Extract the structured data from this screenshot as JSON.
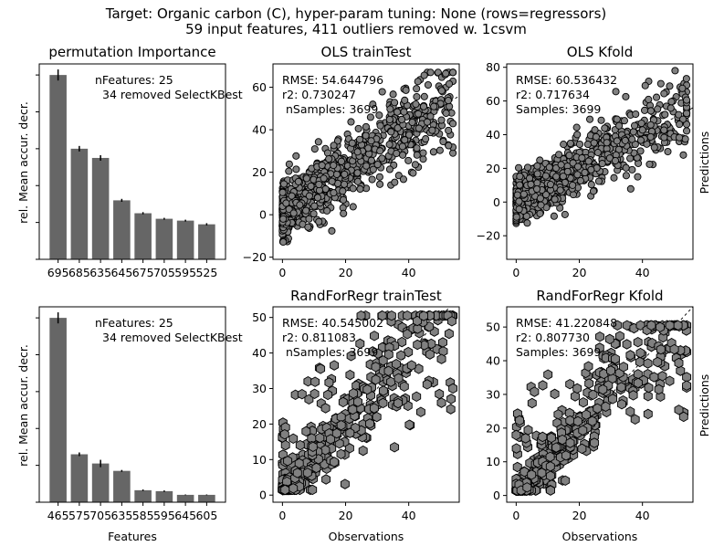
{
  "figure": {
    "title_line1": "Target: Organic carbon (C), hyper-param tuning: None (rows=regressors)",
    "title_line2": "59 input features, 411 outliers removed w. 1csvm"
  },
  "chart_data": [
    {
      "id": "importance_ols",
      "type": "bar",
      "title": "permutation Importance",
      "ylabel": "rel. Mean accur. decr.",
      "xlabel": "",
      "annotation_line1": "nFeatures: 25",
      "annotation_line2": "34 removed SelectKBest",
      "categories": [
        "695",
        "685",
        "635",
        "645",
        "675",
        "705",
        "595",
        "525"
      ],
      "values": [
        1.0,
        0.6,
        0.55,
        0.32,
        0.25,
        0.22,
        0.21,
        0.19
      ],
      "errors": [
        0.03,
        0.015,
        0.015,
        0.008,
        0.006,
        0.005,
        0.005,
        0.006
      ],
      "ylim": [
        0,
        1.06
      ],
      "yticks_labeled": false
    },
    {
      "id": "ols_traintest",
      "type": "scatter",
      "title": "OLS trainTest",
      "xlabel": "",
      "ylabel": "",
      "marker": "circle",
      "annotation_line1": "RMSE: 54.644796",
      "annotation_line2": "r2: 0.730247",
      "annotation_line3": " nSamples: 3699",
      "xlim": [
        -3,
        56
      ],
      "ylim": [
        -21,
        71
      ],
      "xticks": [
        "0",
        "20",
        "40"
      ],
      "yticks": [
        "−20",
        "0",
        "20",
        "40",
        "60"
      ],
      "trend": "ols"
    },
    {
      "id": "ols_kfold",
      "type": "scatter",
      "title": "OLS Kfold",
      "xlabel": "",
      "ylabel": "Predictions",
      "marker": "circle",
      "annotation_line1": "RMSE: 60.536432",
      "annotation_line2": "r2: 0.717634",
      "annotation_line3": "Samples: 3699",
      "xlim": [
        -3,
        56
      ],
      "ylim": [
        -34,
        82
      ],
      "xticks": [
        "0",
        "20",
        "40"
      ],
      "yticks": [
        "−20",
        "0",
        "20",
        "40",
        "60",
        "80"
      ],
      "trend": "ols"
    },
    {
      "id": "importance_rf",
      "type": "bar",
      "title": "",
      "ylabel": "rel. Mean accur. decr.",
      "xlabel": "Features",
      "annotation_line1": "nFeatures: 25",
      "annotation_line2": "34 removed SelectKBest",
      "categories": [
        "465",
        "575",
        "705",
        "635",
        "585",
        "595",
        "645",
        "605"
      ],
      "values": [
        1.0,
        0.26,
        0.21,
        0.17,
        0.065,
        0.06,
        0.04,
        0.04
      ],
      "errors": [
        0.03,
        0.01,
        0.02,
        0.005,
        0.004,
        0.004,
        0.002,
        0.002
      ],
      "ylim": [
        0,
        1.06
      ],
      "yticks_labeled": false
    },
    {
      "id": "rf_traintest",
      "type": "scatter",
      "title": "RandForRegr trainTest",
      "xlabel": "Observations",
      "ylabel": "",
      "marker": "hexagon",
      "annotation_line1": "RMSE: 40.545002",
      "annotation_line2": "r2: 0.811083",
      "annotation_line3": " nSamples: 3699",
      "xlim": [
        -3,
        56
      ],
      "ylim": [
        -2,
        53
      ],
      "xticks": [
        "0",
        "20",
        "40"
      ],
      "yticks": [
        "0",
        "10",
        "20",
        "30",
        "40",
        "50"
      ],
      "trend": "rf"
    },
    {
      "id": "rf_kfold",
      "type": "scatter",
      "title": "RandForRegr Kfold",
      "xlabel": "Observations",
      "ylabel": "Predictions",
      "marker": "hexagon",
      "annotation_line1": "RMSE: 41.220848",
      "annotation_line2": "r2: 0.807730",
      "annotation_line3": "Samples: 3699",
      "xlim": [
        -3,
        56
      ],
      "ylim": [
        -2,
        56
      ],
      "xticks": [
        "0",
        "20",
        "40"
      ],
      "yticks": [
        "0",
        "10",
        "20",
        "30",
        "40",
        "50"
      ],
      "trend": "rf"
    }
  ]
}
